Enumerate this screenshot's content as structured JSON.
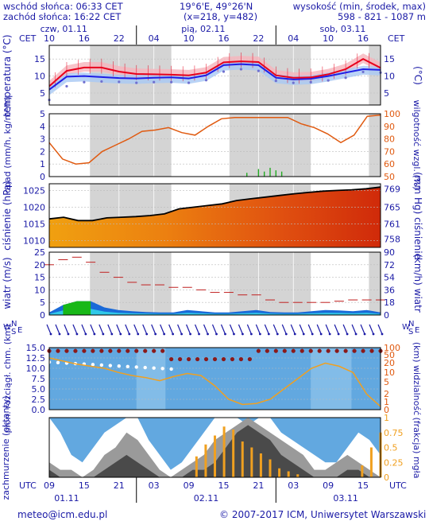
{
  "header": {
    "sunrise": "wschód słońca: 06:33 CET",
    "sunset": "zachód słońca: 16:22 CET",
    "coords": "19°6'E, 49°26'N",
    "grid": "(x=218, y=482)",
    "elev_label": "wysokość (min, środek, max)",
    "elev_values": "598 - 821 - 1087 m"
  },
  "timezone_label": "CET",
  "utc_label": "UTC",
  "days_top": [
    "czw, 01.11",
    "pią, 02.11",
    "sob, 03.11"
  ],
  "cet_hour_labels": [
    "10",
    "16",
    "22",
    "04",
    "10",
    "16",
    "22",
    "04",
    "10",
    "16"
  ],
  "utc_hour_labels": [
    "09",
    "15",
    "21",
    "03",
    "09",
    "15",
    "21",
    "03",
    "09",
    "15"
  ],
  "days_bottom": [
    "01.11",
    "02.11",
    "03.11"
  ],
  "colors": {
    "text": "#1a1aa6",
    "night": "#d4d4d4",
    "temp_main": "#e8001c",
    "temp_dew": "#1e1ee6",
    "rain": "#22aa22",
    "humidity": "#e05a10",
    "pressure_line": "#000000",
    "fog": "#f0a020"
  },
  "footer": {
    "email": "meteo@icm.edu.pl",
    "copyright": "© 2007-2017 ICM, Uniwersytet Warszawski"
  },
  "chart_data": [
    {
      "type": "line",
      "ylabel_left": "temperatura (°C)",
      "ylabel_right": "(°C)",
      "yticks": [
        5,
        10,
        15
      ],
      "ylim": [
        1.5,
        19
      ],
      "x_hours": [
        0,
        3,
        6,
        9,
        12,
        15,
        18,
        21,
        24,
        27,
        30,
        33,
        36,
        39,
        42,
        45,
        48,
        51,
        54,
        57
      ],
      "series": [
        {
          "role": "temperature",
          "values": [
            7,
            11.5,
            12.5,
            12.5,
            11.3,
            10.6,
            10.5,
            10.4,
            10.2,
            11,
            14,
            14.3,
            14.1,
            10.2,
            9.5,
            9.6,
            10.5,
            12,
            15,
            12.4
          ]
        },
        {
          "role": "dew point",
          "values": [
            6,
            9.8,
            10,
            9.7,
            9.4,
            9.3,
            9.5,
            9.6,
            9.3,
            10.2,
            13.2,
            13.5,
            13.2,
            9.5,
            9,
            9.2,
            10,
            11,
            12,
            11.8
          ]
        },
        {
          "role": "wind chill",
          "values": [
            3,
            7,
            8.2,
            8.4,
            8.3,
            8,
            8.2,
            8.2,
            8,
            8.8,
            11.3,
            12,
            11.5,
            8.6,
            8,
            8.2,
            8.7,
            9.5,
            11.2,
            11
          ]
        }
      ]
    },
    {
      "type": "bar",
      "ylabel_left": "opad (mm/h, kg/m²/h)",
      "ylabel_right": "wilgotność wzgl. (%)",
      "yticks_left": [
        0,
        1,
        2,
        3,
        4,
        5
      ],
      "yticks_right": [
        50,
        60,
        70,
        80,
        90,
        100
      ],
      "ylim_left": [
        0,
        5
      ],
      "ylim_right": [
        50,
        100
      ],
      "precip_bars": [
        {
          "hour": 34,
          "mm": 0.3
        },
        {
          "hour": 36,
          "mm": 0.6
        },
        {
          "hour": 37,
          "mm": 0.4
        },
        {
          "hour": 38,
          "mm": 0.7
        },
        {
          "hour": 39,
          "mm": 0.5
        },
        {
          "hour": 40,
          "mm": 0.4
        }
      ],
      "humidity": [
        77,
        64,
        60,
        61,
        70,
        75,
        80,
        86,
        87,
        89,
        85,
        83,
        90,
        96,
        97,
        97,
        97,
        97,
        97,
        92,
        89,
        84,
        77,
        83,
        98,
        99
      ]
    },
    {
      "type": "area",
      "ylabel_left": "ciśnienie (hPa)",
      "ylabel_right": "(mm Hg) ciśnienie",
      "yticks_left": [
        1010,
        1015,
        1020,
        1025
      ],
      "yticks_right": [
        758,
        761,
        765,
        769
      ],
      "ylim": [
        1008,
        1027
      ],
      "pressure": [
        1016.5,
        1017,
        1016,
        1016,
        1016.8,
        1017,
        1017.2,
        1017.5,
        1018,
        1019.5,
        1020,
        1020.5,
        1021,
        1022,
        1022.5,
        1023,
        1023.5,
        1024,
        1024.4,
        1024.8,
        1025,
        1025.2,
        1025.5,
        1026
      ]
    },
    {
      "type": "line",
      "ylabel_left": "wiatr (m/s)",
      "ylabel_right": "(km/h) wiatr",
      "yticks_left": [
        0,
        5,
        10,
        15,
        20,
        25
      ],
      "yticks_right": [
        0,
        18,
        36,
        54,
        72,
        90
      ],
      "ylim": [
        0,
        25
      ],
      "wind_speed": [
        1,
        4,
        5.5,
        5.5,
        3,
        2,
        1.5,
        1.2,
        1,
        1,
        2,
        1.5,
        1,
        1,
        1.5,
        2,
        1.2,
        1,
        1,
        1.5,
        2,
        1.8,
        1.5,
        2,
        1
      ],
      "wind_gust": [
        20,
        22,
        23,
        21,
        17,
        15,
        13,
        12,
        12,
        11,
        11,
        10,
        9,
        9,
        8,
        8,
        6,
        5,
        5,
        5,
        5,
        5.5,
        6,
        6,
        6
      ]
    },
    {
      "type": "scatter",
      "ylabel_left": "pion. rozciągł. chm. (km)",
      "ylabel_right": "(km) widzialność",
      "yticks_left": [
        0,
        2.5,
        5,
        7.5,
        10,
        12.5,
        15
      ],
      "yticks_right": [
        0,
        1,
        2,
        5,
        10,
        20,
        50,
        100
      ],
      "ylim": [
        0,
        15
      ],
      "visibility_line": [
        5,
        4.7,
        4.4,
        4.2,
        4,
        3.6,
        3.3,
        3.1,
        2.8,
        3.2,
        3.5,
        3.3,
        2.3,
        1,
        0.5,
        0.6,
        1,
        2,
        3,
        4,
        4.5,
        4.2,
        3.6,
        1.5,
        0.3
      ]
    },
    {
      "type": "area",
      "ylabel_left": "zachmurzenie (oktanty)",
      "ylabel_right": "(frakcja) mgła",
      "yticks_right": [
        0,
        0.25,
        0.5,
        0.75,
        1
      ],
      "ylim_right": [
        0,
        1
      ],
      "fog": [
        0,
        0,
        0,
        0,
        0,
        0,
        0,
        0,
        0,
        0,
        0,
        0,
        0,
        0,
        0,
        0,
        0.35,
        0.55,
        0.7,
        0.85,
        0.8,
        0.6,
        0.5,
        0.4,
        0.3,
        0.15,
        0.1,
        0.05,
        0,
        0,
        0,
        0,
        0,
        0,
        0.2,
        0.5,
        0.75
      ]
    }
  ]
}
